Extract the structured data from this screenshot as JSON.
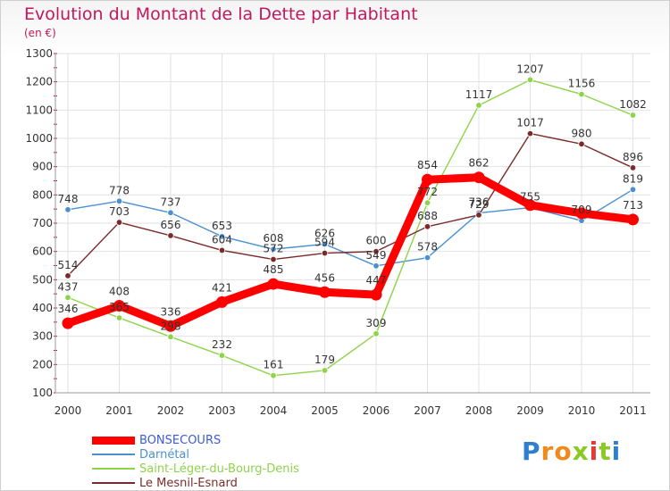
{
  "header": {
    "title": "Evolution du Montant de la Dette par Habitant",
    "subtitle": "(en €)"
  },
  "logo": {
    "letters": [
      "P",
      "r",
      "o",
      "x",
      "i",
      "t",
      "i"
    ],
    "colors": [
      "#2f7fd1",
      "#f08a1d",
      "#f08a1d",
      "#8ac926",
      "#e53935",
      "#8ac926",
      "#2f7fd1"
    ]
  },
  "chart_data": {
    "type": "line",
    "title": "Evolution du Montant de la Dette par Habitant",
    "subtitle": "(en €)",
    "xlabel": "",
    "ylabel": "",
    "x": [
      "2000",
      "2001",
      "2002",
      "2003",
      "2004",
      "2005",
      "2006",
      "2007",
      "2008",
      "2009",
      "2010",
      "2011"
    ],
    "ylim": [
      100,
      1300
    ],
    "yticks": [
      100,
      200,
      300,
      400,
      500,
      600,
      700,
      800,
      900,
      1000,
      1100,
      1200,
      1300
    ],
    "grid": true,
    "legend_position": "bottom-left",
    "series": [
      {
        "name": "BONSECOURS",
        "color": "#ff0000",
        "values": [
          346,
          408,
          336,
          421,
          485,
          456,
          447,
          854,
          862,
          764,
          735,
          713
        ],
        "labels": [
          "346",
          "408",
          "336",
          "421",
          "485",
          "456",
          "447",
          "854",
          "862",
          "",
          "",
          "713"
        ]
      },
      {
        "name": "Darnétal",
        "color": "#4a90d0",
        "values": [
          748,
          778,
          737,
          653,
          608,
          626,
          549,
          578,
          736,
          755,
          709,
          819
        ],
        "labels": [
          "748",
          "778",
          "737",
          "653",
          "608",
          "626",
          "549",
          "578",
          "736",
          "755",
          "709",
          "819"
        ]
      },
      {
        "name": "Saint-Léger-du-Bourg-Denis",
        "color": "#8ed449",
        "values": [
          437,
          365,
          298,
          232,
          161,
          179,
          309,
          772,
          1117,
          1207,
          1156,
          1082
        ],
        "labels": [
          "437",
          "365",
          "298",
          "232",
          "161",
          "179",
          "309",
          "772",
          "1117",
          "1207",
          "1156",
          "1082"
        ]
      },
      {
        "name": "Le Mesnil-Esnard",
        "color": "#7b2a2a",
        "values": [
          514,
          703,
          656,
          604,
          572,
          594,
          600,
          688,
          729,
          1017,
          980,
          896
        ],
        "labels": [
          "514",
          "703",
          "656",
          "604",
          "572",
          "594",
          "600",
          "688",
          "729",
          "1017",
          "980",
          "896"
        ]
      }
    ]
  }
}
